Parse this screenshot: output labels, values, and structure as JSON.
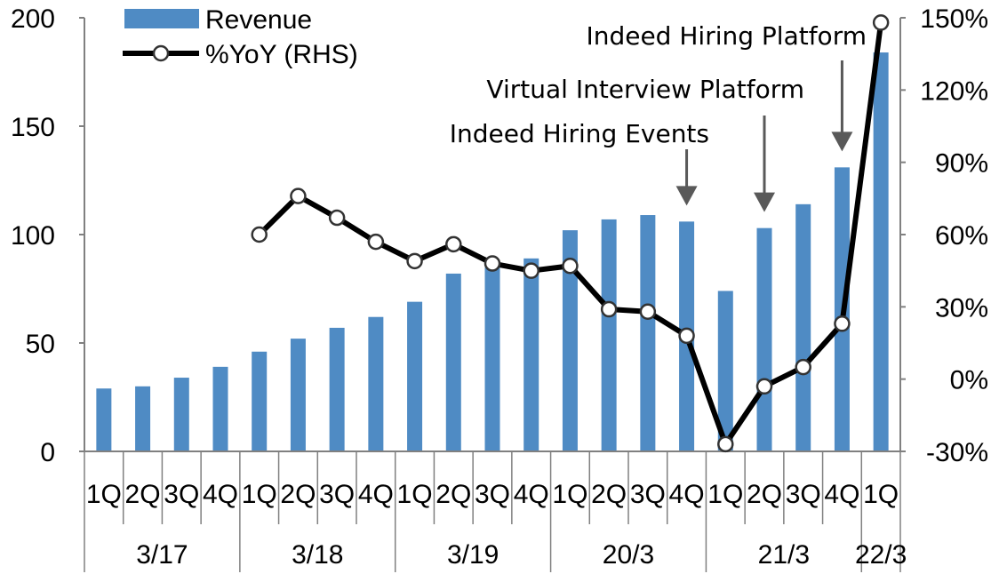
{
  "chart_data": {
    "type": "bar+line",
    "categories": [
      "1Q",
      "2Q",
      "3Q",
      "4Q",
      "1Q",
      "2Q",
      "3Q",
      "4Q",
      "1Q",
      "2Q",
      "3Q",
      "4Q",
      "1Q",
      "2Q",
      "3Q",
      "4Q",
      "1Q",
      "2Q",
      "3Q",
      "4Q",
      "1Q"
    ],
    "groups": [
      {
        "label": "3/17",
        "count": 4
      },
      {
        "label": "3/18",
        "count": 4
      },
      {
        "label": "3/19",
        "count": 4
      },
      {
        "label": "20/3",
        "count": 4
      },
      {
        "label": "21/3",
        "count": 4
      },
      {
        "label": "22/3",
        "count": 1
      }
    ],
    "series": [
      {
        "name": "Revenue",
        "type": "bar",
        "axis": "left",
        "values": [
          29,
          30,
          34,
          39,
          46,
          52,
          57,
          62,
          69,
          82,
          85,
          89,
          102,
          107,
          109,
          106,
          74,
          103,
          114,
          131,
          184
        ]
      },
      {
        "name": "%YoY (RHS)",
        "type": "line",
        "axis": "right",
        "values": [
          null,
          null,
          null,
          null,
          60,
          76,
          67,
          57,
          49,
          56,
          48,
          45,
          47,
          29,
          28,
          18,
          -27,
          -3,
          5,
          23,
          148
        ]
      }
    ],
    "left_axis": {
      "min": 0,
      "max": 200,
      "ticks": [
        "0",
        "50",
        "100",
        "150",
        "200"
      ]
    },
    "right_axis": {
      "min": -30,
      "max": 150,
      "ticks": [
        "-30%",
        "0%",
        "30%",
        "60%",
        "90%",
        "120%",
        "150%"
      ]
    },
    "annotations": [
      {
        "text": "Indeed Hiring Events",
        "index": 15
      },
      {
        "text": "Virtual Interview Platform",
        "index": 17
      },
      {
        "text": "Indeed Hiring Platform",
        "index": 19
      }
    ],
    "colors": {
      "bar": "#4f8bc4",
      "line": "#000000",
      "arrow": "#595959",
      "axis": "#808080"
    },
    "legend_position": "top-left"
  }
}
